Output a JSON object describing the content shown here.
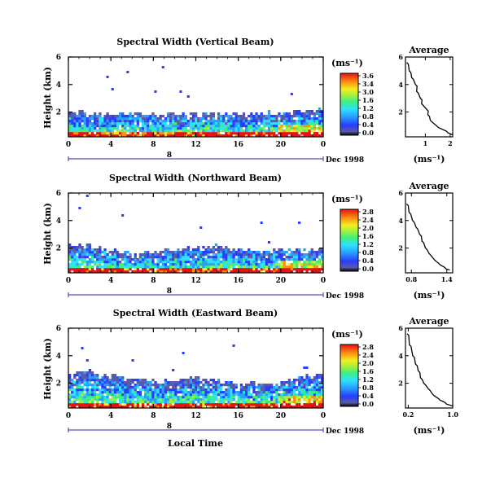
{
  "chart_data": [
    {
      "type": "heatmap",
      "title": "Spectral Width (Vertical Beam)",
      "ylabel": "Height (km)",
      "x_ticks": [
        "0",
        "4",
        "8",
        "12",
        "16",
        "20",
        "0"
      ],
      "y_ticks": [
        "6",
        "4",
        "2"
      ],
      "xlim": [
        0,
        24
      ],
      "ylim": [
        0.2,
        6
      ],
      "date_marker": "8",
      "date_label": "Dec 1998",
      "colorbar_unit": "(ms⁻¹)",
      "colorbar_ticks": [
        "3.6",
        "3.4",
        "3.0",
        "1.6",
        "1.2",
        "0.8",
        "0.4",
        "0.0"
      ],
      "colorbar_max": 3.6,
      "echo_profile": [
        {
          "x": 0,
          "top": 2.0
        },
        {
          "x": 2,
          "top": 2.0
        },
        {
          "x": 4,
          "top": 1.95
        },
        {
          "x": 6,
          "top": 1.95
        },
        {
          "x": 8,
          "top": 1.95
        },
        {
          "x": 10,
          "top": 1.95
        },
        {
          "x": 12,
          "top": 1.9
        },
        {
          "x": 14,
          "top": 1.9
        },
        {
          "x": 16,
          "top": 1.95
        },
        {
          "x": 18,
          "top": 1.95
        },
        {
          "x": 20,
          "top": 2.05
        },
        {
          "x": 22,
          "top": 2.1
        },
        {
          "x": 24,
          "top": 2.3
        }
      ],
      "average": {
        "title": "Average",
        "xlabel": "(ms⁻¹)",
        "x_ticks": [
          "1",
          "2"
        ],
        "y_ticks": [
          "6",
          "4",
          "2"
        ],
        "xlim": [
          0.2,
          2.1
        ],
        "ylim": [
          0.2,
          6
        ],
        "profile": [
          {
            "width": 0.25,
            "height": 5.6
          },
          {
            "width": 0.35,
            "height": 5.0
          },
          {
            "width": 0.45,
            "height": 4.5
          },
          {
            "width": 0.6,
            "height": 4.0
          },
          {
            "width": 0.65,
            "height": 3.5
          },
          {
            "width": 0.8,
            "height": 3.0
          },
          {
            "width": 0.85,
            "height": 2.6
          },
          {
            "width": 1.05,
            "height": 2.2
          },
          {
            "width": 1.1,
            "height": 1.8
          },
          {
            "width": 1.2,
            "height": 1.4
          },
          {
            "width": 1.45,
            "height": 1.0
          },
          {
            "width": 1.85,
            "height": 0.6
          },
          {
            "width": 2.1,
            "height": 0.35
          }
        ]
      }
    },
    {
      "type": "heatmap",
      "title": "Spectral Width (Northward Beam)",
      "ylabel": "Height (km)",
      "x_ticks": [
        "0",
        "4",
        "8",
        "12",
        "16",
        "20",
        "0"
      ],
      "y_ticks": [
        "6",
        "4",
        "2"
      ],
      "xlim": [
        0,
        24
      ],
      "ylim": [
        0.2,
        6
      ],
      "date_marker": "8",
      "date_label": "Dec 1998",
      "colorbar_unit": "(ms⁻¹)",
      "colorbar_ticks": [
        "2.8",
        "2.4",
        "2.0",
        "1.6",
        "1.2",
        "0.8",
        "0.4",
        "0.0"
      ],
      "colorbar_max": 2.8,
      "echo_profile": [
        {
          "x": 0,
          "top": 2.4
        },
        {
          "x": 2,
          "top": 2.2
        },
        {
          "x": 4,
          "top": 1.9
        },
        {
          "x": 6,
          "top": 1.6
        },
        {
          "x": 8,
          "top": 1.8
        },
        {
          "x": 10,
          "top": 2.0
        },
        {
          "x": 12,
          "top": 2.2
        },
        {
          "x": 14,
          "top": 2.3
        },
        {
          "x": 16,
          "top": 2.0
        },
        {
          "x": 18,
          "top": 1.9
        },
        {
          "x": 20,
          "top": 2.0
        },
        {
          "x": 22,
          "top": 1.9
        },
        {
          "x": 24,
          "top": 2.0
        }
      ],
      "average": {
        "title": "Average",
        "xlabel": "(ms⁻¹)",
        "x_ticks": [
          "0.8",
          "1.4"
        ],
        "y_ticks": [
          "6",
          "4",
          "2"
        ],
        "xlim": [
          0.7,
          1.5
        ],
        "ylim": [
          0.2,
          6
        ],
        "profile": [
          {
            "width": 0.72,
            "height": 5.2
          },
          {
            "width": 0.76,
            "height": 4.6
          },
          {
            "width": 0.82,
            "height": 4.0
          },
          {
            "width": 0.88,
            "height": 3.5
          },
          {
            "width": 0.94,
            "height": 3.0
          },
          {
            "width": 0.98,
            "height": 2.5
          },
          {
            "width": 1.04,
            "height": 2.0
          },
          {
            "width": 1.1,
            "height": 1.6
          },
          {
            "width": 1.18,
            "height": 1.2
          },
          {
            "width": 1.26,
            "height": 0.9
          },
          {
            "width": 1.36,
            "height": 0.6
          },
          {
            "width": 1.45,
            "height": 0.4
          }
        ]
      }
    },
    {
      "type": "heatmap",
      "title": "Spectral Width (Eastward Beam)",
      "ylabel": "Height (km)",
      "x_ticks": [
        "0",
        "4",
        "8",
        "12",
        "16",
        "20",
        "0"
      ],
      "y_ticks": [
        "6",
        "4",
        "2"
      ],
      "xlim": [
        0,
        24
      ],
      "ylim": [
        0.2,
        6
      ],
      "date_marker": "8",
      "date_label": "Dec 1998",
      "xlabel": "Local Time",
      "colorbar_unit": "(ms⁻¹)",
      "colorbar_ticks": [
        "2.8",
        "2.4",
        "2.0",
        "1.6",
        "1.2",
        "0.8",
        "0.4",
        "0.0"
      ],
      "colorbar_max": 2.8,
      "echo_profile": [
        {
          "x": 0,
          "top": 2.8
        },
        {
          "x": 2,
          "top": 2.9
        },
        {
          "x": 4,
          "top": 2.6
        },
        {
          "x": 6,
          "top": 2.3
        },
        {
          "x": 8,
          "top": 2.2
        },
        {
          "x": 10,
          "top": 2.3
        },
        {
          "x": 12,
          "top": 2.5
        },
        {
          "x": 14,
          "top": 2.3
        },
        {
          "x": 16,
          "top": 2.0
        },
        {
          "x": 18,
          "top": 2.0
        },
        {
          "x": 20,
          "top": 2.2
        },
        {
          "x": 22,
          "top": 2.6
        },
        {
          "x": 24,
          "top": 2.8
        }
      ],
      "average": {
        "title": "Average",
        "xlabel": "(ms⁻¹)",
        "x_ticks": [
          "0.2",
          "1.0"
        ],
        "y_ticks": [
          "6",
          "4",
          "2"
        ],
        "xlim": [
          0.15,
          1.0
        ],
        "ylim": [
          0.2,
          6
        ],
        "profile": [
          {
            "width": 0.18,
            "height": 5.6
          },
          {
            "width": 0.22,
            "height": 4.8
          },
          {
            "width": 0.28,
            "height": 4.0
          },
          {
            "width": 0.33,
            "height": 3.4
          },
          {
            "width": 0.38,
            "height": 2.9
          },
          {
            "width": 0.42,
            "height": 2.4
          },
          {
            "width": 0.48,
            "height": 2.0
          },
          {
            "width": 0.56,
            "height": 1.6
          },
          {
            "width": 0.64,
            "height": 1.2
          },
          {
            "width": 0.74,
            "height": 0.9
          },
          {
            "width": 0.86,
            "height": 0.6
          },
          {
            "width": 1.0,
            "height": 0.35
          }
        ]
      }
    }
  ]
}
